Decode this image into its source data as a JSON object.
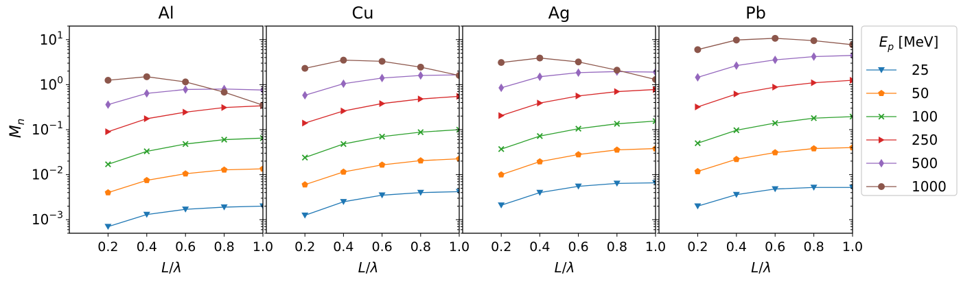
{
  "chart_data": {
    "type": "line",
    "y_scale": "log",
    "ylim": [
      0.0005,
      20
    ],
    "xlim": [
      0.0,
      1.0
    ],
    "x_ticks": [
      "0.2",
      "0.4",
      "0.6",
      "0.8",
      "1.0"
    ],
    "y_ticks": [
      {
        "base": "10",
        "exp": "1",
        "value": 10
      },
      {
        "base": "10",
        "exp": "0",
        "value": 1
      },
      {
        "base": "10",
        "exp": "−1",
        "value": 0.1
      },
      {
        "base": "10",
        "exp": "−2",
        "value": 0.01
      },
      {
        "base": "10",
        "exp": "−3",
        "value": 0.001
      }
    ],
    "xlabel": {
      "main": "L",
      "sep": "/",
      "sym": "λ"
    },
    "ylabel": {
      "main": "M",
      "sub": "n"
    },
    "legend": {
      "placement": "right",
      "title": {
        "main": "E",
        "sub": "p",
        "unit": " [MeV]"
      }
    },
    "series_style": [
      {
        "name": "25",
        "color": "#1f77b4",
        "marker": "triangle-down"
      },
      {
        "name": "50",
        "color": "#ff7f0e",
        "marker": "pentagon"
      },
      {
        "name": "100",
        "color": "#2ca02c",
        "marker": "x"
      },
      {
        "name": "250",
        "color": "#d62728",
        "marker": "triangle-right"
      },
      {
        "name": "500",
        "color": "#9467bd",
        "marker": "diamond"
      },
      {
        "name": "1000",
        "color": "#8c564b",
        "marker": "circle"
      }
    ],
    "x": [
      0.2,
      0.4,
      0.6,
      0.8,
      1.0
    ],
    "panels": [
      {
        "title": "Al",
        "series": [
          {
            "name": "25",
            "values": [
              0.0007,
              0.0013,
              0.0017,
              0.0019,
              0.002
            ]
          },
          {
            "name": "50",
            "values": [
              0.004,
              0.0075,
              0.0105,
              0.0128,
              0.0135
            ]
          },
          {
            "name": "100",
            "values": [
              0.017,
              0.033,
              0.048,
              0.06,
              0.065
            ]
          },
          {
            "name": "250",
            "values": [
              0.09,
              0.175,
              0.245,
              0.31,
              0.34
            ]
          },
          {
            "name": "500",
            "values": [
              0.36,
              0.64,
              0.78,
              0.8,
              0.76
            ]
          },
          {
            "name": "1000",
            "values": [
              1.25,
              1.5,
              1.15,
              0.68,
              0.35
            ]
          }
        ]
      },
      {
        "title": "Cu",
        "series": [
          {
            "name": "25",
            "values": [
              0.00125,
              0.0025,
              0.0035,
              0.004,
              0.0042
            ]
          },
          {
            "name": "50",
            "values": [
              0.006,
              0.0115,
              0.0165,
              0.0205,
              0.0225
            ]
          },
          {
            "name": "100",
            "values": [
              0.024,
              0.048,
              0.07,
              0.088,
              0.1
            ]
          },
          {
            "name": "250",
            "values": [
              0.14,
              0.26,
              0.38,
              0.48,
              0.55
            ]
          },
          {
            "name": "500",
            "values": [
              0.58,
              1.05,
              1.4,
              1.6,
              1.65
            ]
          },
          {
            "name": "1000",
            "values": [
              2.3,
              3.5,
              3.3,
              2.45,
              1.6
            ]
          }
        ]
      },
      {
        "title": "Ag",
        "series": [
          {
            "name": "25",
            "values": [
              0.0021,
              0.004,
              0.0055,
              0.0064,
              0.0066
            ]
          },
          {
            "name": "50",
            "values": [
              0.01,
              0.0195,
              0.028,
              0.0355,
              0.038
            ]
          },
          {
            "name": "100",
            "values": [
              0.037,
              0.072,
              0.105,
              0.135,
              0.155
            ]
          },
          {
            "name": "250",
            "values": [
              0.205,
              0.39,
              0.56,
              0.7,
              0.78
            ]
          },
          {
            "name": "500",
            "values": [
              0.85,
              1.5,
              1.85,
              1.95,
              1.9
            ]
          },
          {
            "name": "1000",
            "values": [
              3.1,
              3.9,
              3.2,
              2.1,
              1.3
            ]
          }
        ]
      },
      {
        "title": "Pb",
        "series": [
          {
            "name": "25",
            "values": [
              0.002,
              0.0036,
              0.0048,
              0.0052,
              0.0052
            ]
          },
          {
            "name": "50",
            "values": [
              0.0118,
              0.022,
              0.031,
              0.038,
              0.04
            ]
          },
          {
            "name": "100",
            "values": [
              0.05,
              0.097,
              0.14,
              0.18,
              0.195
            ]
          },
          {
            "name": "250",
            "values": [
              0.32,
              0.62,
              0.88,
              1.1,
              1.25
            ]
          },
          {
            "name": "500",
            "values": [
              1.45,
              2.65,
              3.55,
              4.2,
              4.45
            ]
          },
          {
            "name": "1000",
            "values": [
              6.0,
              9.8,
              10.7,
              9.5,
              7.7
            ]
          }
        ]
      }
    ]
  }
}
